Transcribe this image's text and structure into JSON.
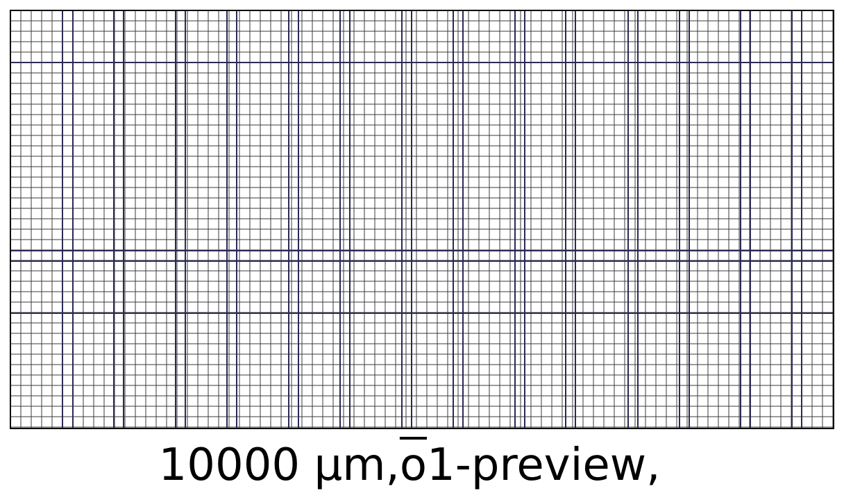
{
  "figure": {
    "caption_prefix": "10000 μm,",
    "caption_overlined": "o",
    "caption_suffix": "1-preview,",
    "colors": {
      "background": "#ffffff",
      "frame": "#000000",
      "fine_line": "#3a3a3a",
      "major_line": "#2b2a55"
    }
  }
}
